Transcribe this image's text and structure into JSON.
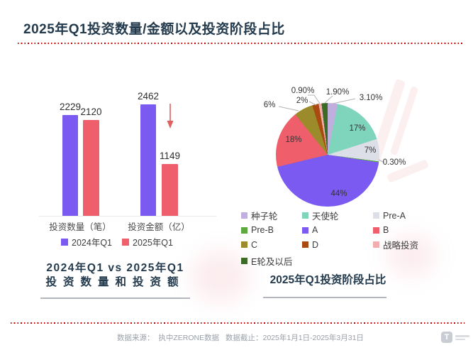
{
  "header": {
    "title": "2025年Q1投资数量/金额以及投资阶段占比"
  },
  "bar_section": {
    "caption_line1": "2024年Q1 vs 2025年Q1",
    "caption_line2": "投资数量和投资额"
  },
  "pie_section": {
    "caption": "2025年Q1投资阶段占比"
  },
  "footer": {
    "source_label": "数据来源：",
    "source_value": "执中ZERONE数据",
    "range_label": "数据截止：",
    "range_value": "2025年1月1日-2025年3月31日"
  },
  "colors": {
    "accent_red_dotted": "#c30000",
    "title_navy": "#233a4d",
    "bar_2024": "#7a5af0",
    "bar_2025": "#ef5f6b"
  },
  "chart_data": [
    {
      "type": "bar",
      "title": "2024年Q1 vs 2025年Q1 投资数量和投资额",
      "categories": [
        "投资数量（笔）",
        "投资金额（亿）"
      ],
      "series": [
        {
          "name": "2024年Q1",
          "color": "#7a5af0",
          "values": [
            2229,
            2462
          ]
        },
        {
          "name": "2025年Q1",
          "color": "#ef5f6b",
          "values": [
            2120,
            1149
          ]
        }
      ],
      "ylim": [
        0,
        2462
      ],
      "grid": false,
      "legend_position": "bottom",
      "annotations": [
        "下降箭头（投资金额）"
      ]
    },
    {
      "type": "pie",
      "title": "2025年Q1投资阶段占比",
      "start_angle_deg": 0,
      "direction": "clockwise",
      "legend_position": "bottom",
      "slices": [
        {
          "label": "种子轮",
          "value": 3.1,
          "pct_label": "3.10%",
          "color": "#bfaede"
        },
        {
          "label": "天使轮",
          "value": 17,
          "pct_label": "17%",
          "color": "#7fd4bc"
        },
        {
          "label": "Pre-A",
          "value": 7,
          "pct_label": "7%",
          "color": "#dcdfe8"
        },
        {
          "label": "Pre-B",
          "value": 0.3,
          "pct_label": "0.30%",
          "color": "#5caa3e"
        },
        {
          "label": "A",
          "value": 44,
          "pct_label": "44%",
          "color": "#7a5af0"
        },
        {
          "label": "B",
          "value": 18,
          "pct_label": "18%",
          "color": "#ef5f6b"
        },
        {
          "label": "C",
          "value": 6,
          "pct_label": "6%",
          "color": "#9b8b2a"
        },
        {
          "label": "D",
          "value": 2,
          "pct_label": "2%",
          "color": "#a94a10"
        },
        {
          "label": "战略投资",
          "value": 0.9,
          "pct_label": "0.90%",
          "color": "#f2aeae"
        },
        {
          "label": "E轮及以后",
          "value": 1.9,
          "pct_label": "1.90%",
          "color": "#3c6b26"
        }
      ]
    }
  ]
}
